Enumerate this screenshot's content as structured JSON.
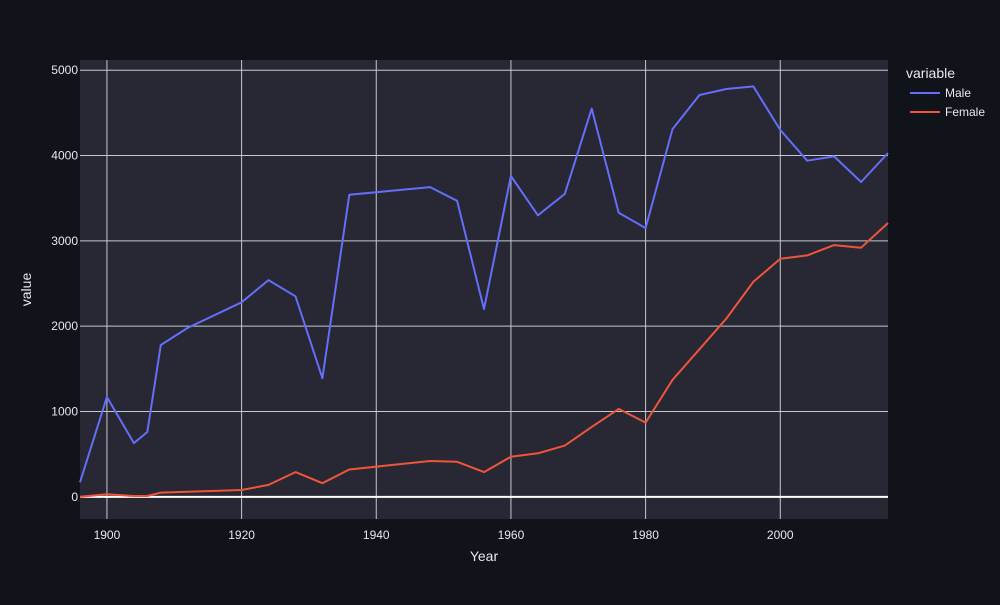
{
  "chart_data": {
    "type": "line",
    "title": "",
    "xlabel": "Year",
    "ylabel": "value",
    "xlim": [
      1896,
      2016
    ],
    "ylim": [
      -260,
      5120
    ],
    "xticks": [
      1900,
      1920,
      1940,
      1960,
      1980,
      2000
    ],
    "yticks": [
      0,
      1000,
      2000,
      3000,
      4000,
      5000
    ],
    "grid": true,
    "legend": {
      "title": "variable",
      "position": "top-right"
    },
    "x": [
      1896,
      1900,
      1904,
      1906,
      1908,
      1912,
      1920,
      1924,
      1928,
      1932,
      1936,
      1948,
      1952,
      1956,
      1960,
      1964,
      1968,
      1972,
      1976,
      1980,
      1984,
      1988,
      1992,
      1996,
      2000,
      2004,
      2008,
      2012,
      2016
    ],
    "series": [
      {
        "name": "Male",
        "color": "#636efa",
        "values": [
          170,
          1170,
          630,
          760,
          1780,
          1980,
          2280,
          2540,
          2350,
          1390,
          3540,
          3630,
          3470,
          2200,
          3760,
          3300,
          3550,
          4550,
          3330,
          3150,
          4310,
          4710,
          4780,
          4810,
          4300,
          3940,
          3990,
          3690,
          4030
        ]
      },
      {
        "name": "Female",
        "color": "#ef553b",
        "values": [
          0,
          30,
          10,
          10,
          50,
          60,
          80,
          140,
          290,
          160,
          320,
          420,
          410,
          290,
          470,
          510,
          600,
          820,
          1030,
          870,
          1370,
          1730,
          2090,
          2520,
          2790,
          2830,
          2950,
          2920,
          3210
        ]
      }
    ]
  }
}
